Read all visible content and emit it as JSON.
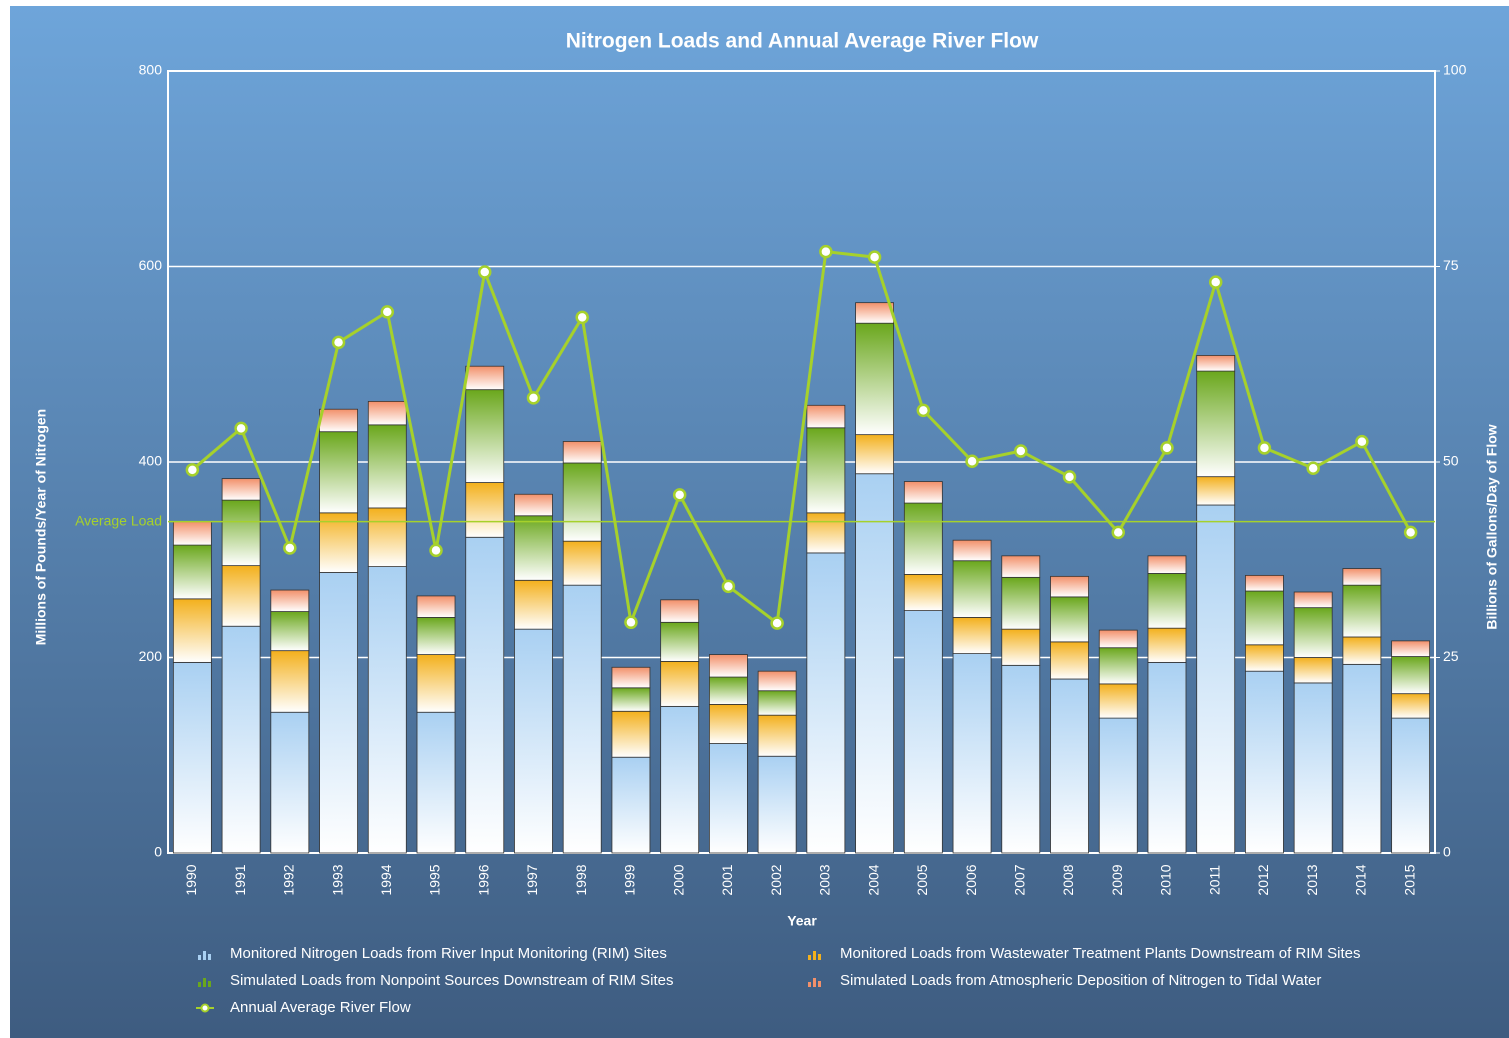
{
  "chart_data": {
    "type": "bar",
    "stacked": true,
    "title": "Nitrogen Loads and Annual Average River Flow",
    "x_label": "Year",
    "y_label": "Millions of Pounds/Year of Nitrogen",
    "y2_label": "Billions of Gallons/Day of Flow",
    "categories": [
      "1990",
      "1991",
      "1992",
      "1993",
      "1994",
      "1995",
      "1996",
      "1997",
      "1998",
      "1999",
      "2000",
      "2001",
      "2002",
      "2003",
      "2004",
      "2005",
      "2006",
      "2007",
      "2008",
      "2009",
      "2010",
      "2011",
      "2012",
      "2013",
      "2014",
      "2015"
    ],
    "series": [
      {
        "name": "Monitored Nitrogen Loads from River Input Monitoring (RIM) Sites",
        "color": "#a9d0f2",
        "values": [
          195,
          232,
          144,
          287,
          293,
          144,
          323,
          229,
          274,
          98,
          150,
          112,
          99,
          307,
          388,
          248,
          204,
          192,
          178,
          138,
          195,
          356,
          186,
          174,
          193,
          138
        ]
      },
      {
        "name": "Monitored Loads from Wastewater Treatment Plants Downstream of RIM Sites",
        "color": "#f3b01c",
        "values": [
          65,
          62,
          63,
          61,
          60,
          59,
          56,
          50,
          45,
          47,
          46,
          40,
          42,
          41,
          40,
          37,
          37,
          37,
          38,
          35,
          35,
          29,
          27,
          26,
          28,
          25
        ]
      },
      {
        "name": "Simulated Loads from Nonpoint Sources Downstream of RIM Sites",
        "color": "#6aa71c",
        "values": [
          55,
          67,
          40,
          83,
          85,
          38,
          95,
          66,
          80,
          24,
          40,
          28,
          25,
          87,
          114,
          73,
          58,
          53,
          46,
          37,
          56,
          108,
          55,
          51,
          53,
          38
        ]
      },
      {
        "name": "Simulated Loads from Atmospheric Deposition of Nitrogen to Tidal Water",
        "color": "#f2906a",
        "values": [
          24,
          22,
          22,
          23,
          24,
          22,
          24,
          22,
          22,
          21,
          23,
          23,
          20,
          23,
          21,
          22,
          21,
          22,
          21,
          18,
          18,
          16,
          16,
          16,
          17,
          16
        ]
      },
      {
        "name": "Annual Average River Flow",
        "type": "line",
        "axis": "y2",
        "color": "#a6d12b",
        "values": [
          49.0,
          54.3,
          39.0,
          65.3,
          69.2,
          38.7,
          74.3,
          58.2,
          68.5,
          29.5,
          45.8,
          34.1,
          29.4,
          76.9,
          76.2,
          56.6,
          50.1,
          51.4,
          48.1,
          41.0,
          51.8,
          73.0,
          51.8,
          49.2,
          52.6,
          41.0
        ]
      }
    ],
    "reference_line": {
      "label": "Average Load",
      "value": 339,
      "color": "#a6d12b"
    },
    "ylim": [
      0,
      800
    ],
    "yticks": [
      0,
      200,
      400,
      600,
      800
    ],
    "y2lim": [
      0,
      100
    ],
    "y2ticks": [
      0,
      25,
      50,
      75,
      100
    ],
    "grid": true
  }
}
